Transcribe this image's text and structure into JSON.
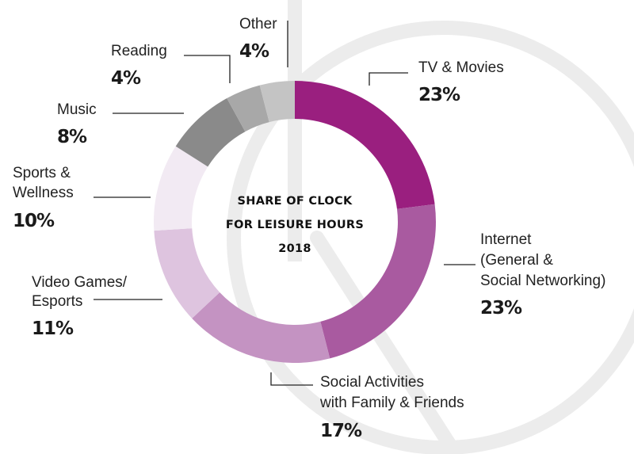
{
  "chart_data": {
    "type": "pie",
    "title_lines": [
      "SHARE OF CLOCK",
      "FOR LEISURE HOURS",
      "2018"
    ],
    "slices": [
      {
        "label_lines": [
          "TV & Movies"
        ],
        "value": 23,
        "value_label": "23%",
        "color": "#9a1f7f"
      },
      {
        "label_lines": [
          "Internet",
          "(General &",
          "Social Networking)"
        ],
        "value": 23,
        "value_label": "23%",
        "color": "#a95aa0"
      },
      {
        "label_lines": [
          "Social Activities",
          "with Family & Friends"
        ],
        "value": 17,
        "value_label": "17%",
        "color": "#c493c2"
      },
      {
        "label_lines": [
          "Video Games/",
          "Esports"
        ],
        "value": 11,
        "value_label": "11%",
        "color": "#dec4df"
      },
      {
        "label_lines": [
          "Sports &",
          "Wellness"
        ],
        "value": 10,
        "value_label": "10%",
        "color": "#f2eaf3"
      },
      {
        "label_lines": [
          "Music"
        ],
        "value": 8,
        "value_label": "8%",
        "color": "#8a8a8a"
      },
      {
        "label_lines": [
          "Reading"
        ],
        "value": 4,
        "value_label": "4%",
        "color": "#a8a8a8"
      },
      {
        "label_lines": [
          "Other"
        ],
        "value": 4,
        "value_label": "4%",
        "color": "#c4c4c4"
      }
    ]
  },
  "colors": {
    "background_watermark": "#ececec"
  }
}
